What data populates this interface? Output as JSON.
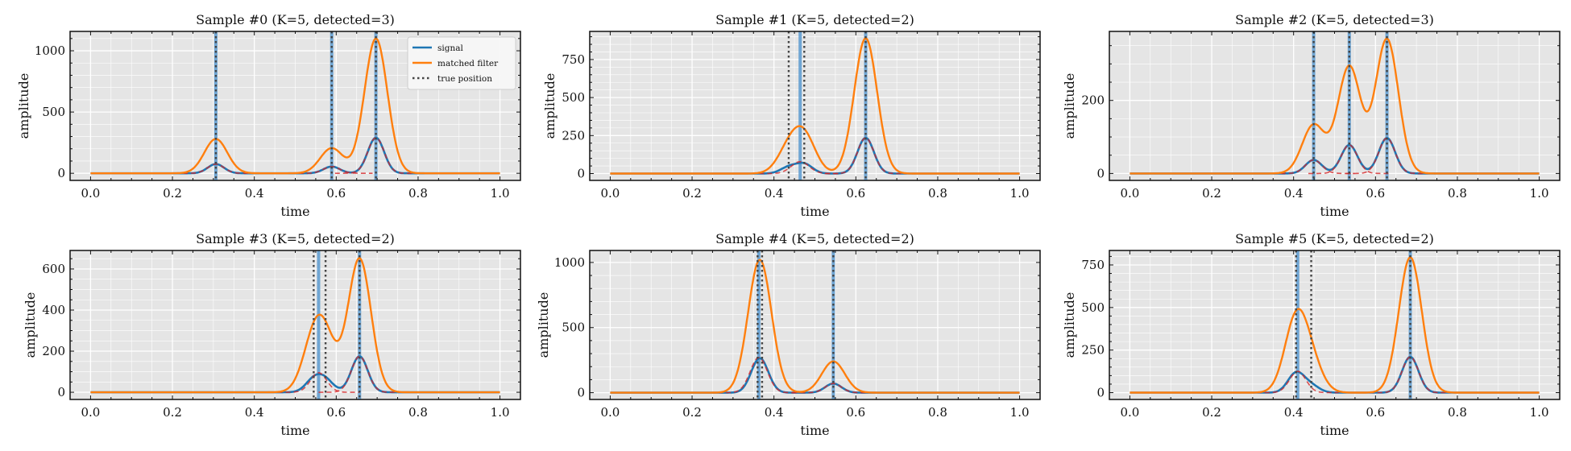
{
  "chart_data": [
    {
      "type": "line",
      "title": "Sample #0 (K=5, detected=3)",
      "xlabel": "time",
      "ylabel": "amplitude",
      "xlim": [
        -0.05,
        1.05
      ],
      "ylim": [
        -58,
        1158
      ],
      "xticks": [
        0,
        0.2,
        0.4,
        0.6,
        0.8,
        1.0
      ],
      "yticks": [
        0,
        500,
        1000
      ],
      "yminor": 100,
      "grid": true,
      "legend": {
        "position": "top-right",
        "entries": [
          "signal",
          "matched filter",
          "true position"
        ]
      },
      "signal": [
        {
          "center": 0.306,
          "amplitude": 75,
          "width": 0.02
        },
        {
          "center": 0.589,
          "amplitude": 55,
          "width": 0.02
        },
        {
          "center": 0.697,
          "amplitude": 290,
          "width": 0.02
        }
      ],
      "matched_filter": [
        {
          "center": 0.306,
          "amplitude": 280,
          "width": 0.028
        },
        {
          "center": 0.589,
          "amplitude": 205,
          "width": 0.028
        },
        {
          "center": 0.697,
          "amplitude": 1100,
          "width": 0.028
        }
      ],
      "fit": [
        {
          "center": 0.306,
          "amplitude": 75,
          "width": 0.02
        },
        {
          "center": 0.589,
          "amplitude": 55,
          "width": 0.02
        },
        {
          "center": 0.697,
          "amplitude": 290,
          "width": 0.02
        }
      ],
      "true_positions": [
        0.306,
        0.589,
        0.697
      ],
      "detections": [
        0.306,
        0.589,
        0.697
      ]
    },
    {
      "type": "line",
      "title": "Sample #1 (K=5, detected=2)",
      "xlabel": "time",
      "ylabel": "amplitude",
      "xlim": [
        -0.05,
        1.05
      ],
      "ylim": [
        -45,
        935
      ],
      "xticks": [
        0,
        0.2,
        0.4,
        0.6,
        0.8,
        1.0
      ],
      "yticks": [
        0,
        250,
        500,
        750
      ],
      "yminor": 50,
      "grid": true,
      "signal": [
        {
          "center": 0.436,
          "amplitude": 42,
          "width": 0.02
        },
        {
          "center": 0.474,
          "amplitude": 62,
          "width": 0.02
        },
        {
          "center": 0.624,
          "amplitude": 235,
          "width": 0.02
        }
      ],
      "matched_filter": [
        {
          "center": 0.436,
          "amplitude": 150,
          "width": 0.028
        },
        {
          "center": 0.474,
          "amplitude": 235,
          "width": 0.028
        },
        {
          "center": 0.624,
          "amplitude": 890,
          "width": 0.028
        }
      ],
      "fit": [
        {
          "center": 0.464,
          "amplitude": 78,
          "width": 0.022
        },
        {
          "center": 0.624,
          "amplitude": 235,
          "width": 0.02
        }
      ],
      "true_positions": [
        0.436,
        0.474,
        0.624
      ],
      "detections": [
        0.464,
        0.624
      ]
    },
    {
      "type": "line",
      "title": "Sample #2 (K=5, detected=3)",
      "xlabel": "time",
      "ylabel": "amplitude",
      "xlim": [
        -0.05,
        1.05
      ],
      "ylim": [
        -19,
        389
      ],
      "xticks": [
        0,
        0.2,
        0.4,
        0.6,
        0.8,
        1.0
      ],
      "yticks": [
        0,
        200
      ],
      "yminor": 50,
      "grid": true,
      "signal": [
        {
          "center": 0.449,
          "amplitude": 37,
          "width": 0.02
        },
        {
          "center": 0.536,
          "amplitude": 78,
          "width": 0.02
        },
        {
          "center": 0.628,
          "amplitude": 97,
          "width": 0.02
        }
      ],
      "matched_filter": [
        {
          "center": 0.449,
          "amplitude": 133,
          "width": 0.028
        },
        {
          "center": 0.536,
          "amplitude": 293,
          "width": 0.028
        },
        {
          "center": 0.628,
          "amplitude": 368,
          "width": 0.028
        }
      ],
      "fit": [
        {
          "center": 0.449,
          "amplitude": 37,
          "width": 0.02
        },
        {
          "center": 0.536,
          "amplitude": 78,
          "width": 0.02
        },
        {
          "center": 0.628,
          "amplitude": 97,
          "width": 0.02
        }
      ],
      "true_positions": [
        0.449,
        0.536,
        0.628
      ],
      "detections": [
        0.449,
        0.536,
        0.628
      ]
    },
    {
      "type": "line",
      "title": "Sample #3 (K=5, detected=2)",
      "xlabel": "time",
      "ylabel": "amplitude",
      "xlim": [
        -0.05,
        1.05
      ],
      "ylim": [
        -35,
        690
      ],
      "xticks": [
        0,
        0.2,
        0.4,
        0.6,
        0.8,
        1.0
      ],
      "yticks": [
        0,
        200,
        400,
        600
      ],
      "yminor": 50,
      "grid": true,
      "signal": [
        {
          "center": 0.545,
          "amplitude": 60,
          "width": 0.02
        },
        {
          "center": 0.574,
          "amplitude": 55,
          "width": 0.02
        },
        {
          "center": 0.657,
          "amplitude": 175,
          "width": 0.02
        }
      ],
      "matched_filter": [
        {
          "center": 0.545,
          "amplitude": 220,
          "width": 0.028
        },
        {
          "center": 0.574,
          "amplitude": 210,
          "width": 0.028
        },
        {
          "center": 0.657,
          "amplitude": 650,
          "width": 0.028
        }
      ],
      "fit": [
        {
          "center": 0.557,
          "amplitude": 95,
          "width": 0.02
        },
        {
          "center": 0.657,
          "amplitude": 175,
          "width": 0.02
        }
      ],
      "true_positions": [
        0.545,
        0.574,
        0.657
      ],
      "detections": [
        0.557,
        0.657
      ]
    },
    {
      "type": "line",
      "title": "Sample #4 (K=5, detected=2)",
      "xlabel": "time",
      "ylabel": "amplitude",
      "xlim": [
        -0.05,
        1.05
      ],
      "ylim": [
        -52,
        1092
      ],
      "xticks": [
        0,
        0.2,
        0.4,
        0.6,
        0.8,
        1.0
      ],
      "yticks": [
        0,
        500,
        1000
      ],
      "yminor": 100,
      "grid": true,
      "signal": [
        {
          "center": 0.36,
          "amplitude": 140,
          "width": 0.02
        },
        {
          "center": 0.371,
          "amplitude": 135,
          "width": 0.02
        },
        {
          "center": 0.545,
          "amplitude": 70,
          "width": 0.02
        }
      ],
      "matched_filter": [
        {
          "center": 0.36,
          "amplitude": 525,
          "width": 0.028
        },
        {
          "center": 0.371,
          "amplitude": 515,
          "width": 0.028
        },
        {
          "center": 0.545,
          "amplitude": 240,
          "width": 0.028
        }
      ],
      "fit": [
        {
          "center": 0.363,
          "amplitude": 270,
          "width": 0.021
        },
        {
          "center": 0.545,
          "amplitude": 70,
          "width": 0.02
        }
      ],
      "true_positions": [
        0.36,
        0.371,
        0.545
      ],
      "detections": [
        0.363,
        0.545
      ]
    },
    {
      "type": "line",
      "title": "Sample #5 (K=5, detected=2)",
      "xlabel": "time",
      "ylabel": "amplitude",
      "xlim": [
        -0.05,
        1.05
      ],
      "ylim": [
        -40,
        835
      ],
      "xticks": [
        0,
        0.2,
        0.4,
        0.6,
        0.8,
        1.0
      ],
      "yticks": [
        0,
        250,
        500,
        750
      ],
      "yminor": 50,
      "grid": true,
      "signal": [
        {
          "center": 0.406,
          "amplitude": 115,
          "width": 0.02
        },
        {
          "center": 0.443,
          "amplitude": 40,
          "width": 0.02
        },
        {
          "center": 0.685,
          "amplitude": 210,
          "width": 0.02
        }
      ],
      "matched_filter": [
        {
          "center": 0.406,
          "amplitude": 420,
          "width": 0.028
        },
        {
          "center": 0.443,
          "amplitude": 150,
          "width": 0.028
        },
        {
          "center": 0.685,
          "amplitude": 795,
          "width": 0.028
        }
      ],
      "fit": [
        {
          "center": 0.41,
          "amplitude": 125,
          "width": 0.02
        },
        {
          "center": 0.685,
          "amplitude": 210,
          "width": 0.02
        }
      ],
      "true_positions": [
        0.406,
        0.443,
        0.685
      ],
      "detections": [
        0.41,
        0.685
      ]
    }
  ],
  "colors": {
    "signal": "#1f77b4",
    "matched_filter": "#ff7f0e",
    "true_position": "#444444",
    "detection": "#5b9bd0",
    "fit": "#d62728",
    "axes_bg": "#e5e5e5",
    "grid": "#ffffff"
  }
}
